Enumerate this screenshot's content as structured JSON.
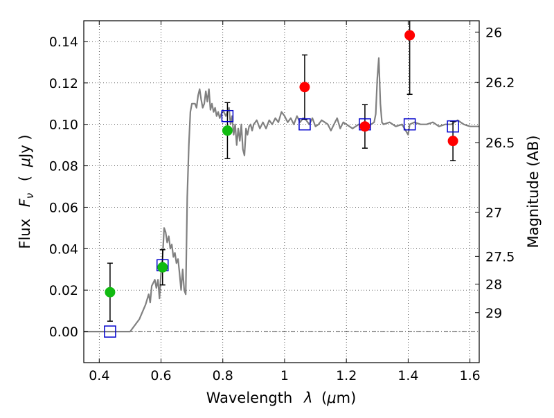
{
  "chart_data": {
    "type": "scatter",
    "xlabel_main": "Wavelength",
    "xlabel_symbol": "λ",
    "xlabel_unit_open": "(",
    "xlabel_unit_mu": "μ",
    "xlabel_unit_rest": "m)",
    "ylabel_main": "Flux",
    "ylabel_symbol": "F",
    "ylabel_sub": "ν",
    "ylabel_unit_open": "(",
    "ylabel_unit_mu": "μ",
    "ylabel_unit_rest": "Jy )",
    "ylabel_right": "Magnitude (AB)",
    "xlim": [
      0.35,
      1.63
    ],
    "ylim": [
      -0.015,
      0.15
    ],
    "x_ticks": [
      0.4,
      0.6,
      0.8,
      1.0,
      1.2,
      1.4,
      1.6
    ],
    "x_tick_labels": [
      "0.4",
      "0.6",
      "0.8",
      "1",
      "1.2",
      "1.4",
      "1.6"
    ],
    "y_ticks": [
      0.0,
      0.02,
      0.04,
      0.06,
      0.08,
      0.1,
      0.12,
      0.14
    ],
    "y_tick_labels": [
      "0.00",
      "0.02",
      "0.04",
      "0.06",
      "0.08",
      "0.10",
      "0.12",
      "0.14"
    ],
    "mag_ticks": [
      {
        "mag": 26,
        "label": "26"
      },
      {
        "mag": 26.2,
        "label": "26.2"
      },
      {
        "mag": 26.5,
        "label": "26.5"
      },
      {
        "mag": 27,
        "label": "27"
      },
      {
        "mag": 27.5,
        "label": "27.5"
      },
      {
        "mag": 28,
        "label": "28"
      },
      {
        "mag": 29,
        "label": "29"
      }
    ],
    "grid": true,
    "colors": {
      "model": "#808080",
      "green_points": "#11bb11",
      "red_points": "#ff0000",
      "model_boxes": "#0000cc",
      "errorbars": "#000000"
    },
    "model_spectrum": [
      [
        0.35,
        0.0
      ],
      [
        0.5,
        0.0
      ],
      [
        0.53,
        0.006
      ],
      [
        0.55,
        0.013
      ],
      [
        0.56,
        0.018
      ],
      [
        0.565,
        0.014
      ],
      [
        0.57,
        0.022
      ],
      [
        0.58,
        0.025
      ],
      [
        0.585,
        0.021
      ],
      [
        0.59,
        0.025
      ],
      [
        0.595,
        0.016
      ],
      [
        0.6,
        0.028
      ],
      [
        0.605,
        0.036
      ],
      [
        0.61,
        0.05
      ],
      [
        0.615,
        0.048
      ],
      [
        0.62,
        0.043
      ],
      [
        0.625,
        0.046
      ],
      [
        0.63,
        0.04
      ],
      [
        0.635,
        0.042
      ],
      [
        0.64,
        0.036
      ],
      [
        0.645,
        0.038
      ],
      [
        0.65,
        0.033
      ],
      [
        0.655,
        0.035
      ],
      [
        0.66,
        0.028
      ],
      [
        0.665,
        0.02
      ],
      [
        0.67,
        0.03
      ],
      [
        0.675,
        0.02
      ],
      [
        0.68,
        0.018
      ],
      [
        0.685,
        0.065
      ],
      [
        0.69,
        0.09
      ],
      [
        0.695,
        0.106
      ],
      [
        0.7,
        0.11
      ],
      [
        0.71,
        0.11
      ],
      [
        0.715,
        0.108
      ],
      [
        0.72,
        0.114
      ],
      [
        0.725,
        0.117
      ],
      [
        0.73,
        0.112
      ],
      [
        0.735,
        0.108
      ],
      [
        0.74,
        0.11
      ],
      [
        0.745,
        0.116
      ],
      [
        0.75,
        0.111
      ],
      [
        0.755,
        0.117
      ],
      [
        0.76,
        0.107
      ],
      [
        0.765,
        0.11
      ],
      [
        0.77,
        0.106
      ],
      [
        0.775,
        0.108
      ],
      [
        0.78,
        0.104
      ],
      [
        0.785,
        0.106
      ],
      [
        0.79,
        0.103
      ],
      [
        0.8,
        0.107
      ],
      [
        0.81,
        0.104
      ],
      [
        0.82,
        0.108
      ],
      [
        0.825,
        0.1
      ],
      [
        0.83,
        0.104
      ],
      [
        0.835,
        0.095
      ],
      [
        0.84,
        0.1
      ],
      [
        0.845,
        0.09
      ],
      [
        0.85,
        0.098
      ],
      [
        0.855,
        0.092
      ],
      [
        0.86,
        0.1
      ],
      [
        0.865,
        0.088
      ],
      [
        0.87,
        0.085
      ],
      [
        0.875,
        0.098
      ],
      [
        0.88,
        0.095
      ],
      [
        0.885,
        0.099
      ],
      [
        0.89,
        0.1
      ],
      [
        0.895,
        0.097
      ],
      [
        0.9,
        0.1
      ],
      [
        0.91,
        0.102
      ],
      [
        0.92,
        0.098
      ],
      [
        0.93,
        0.101
      ],
      [
        0.94,
        0.098
      ],
      [
        0.95,
        0.102
      ],
      [
        0.96,
        0.1
      ],
      [
        0.97,
        0.103
      ],
      [
        0.98,
        0.101
      ],
      [
        0.99,
        0.106
      ],
      [
        1.0,
        0.104
      ],
      [
        1.01,
        0.101
      ],
      [
        1.02,
        0.103
      ],
      [
        1.03,
        0.1
      ],
      [
        1.04,
        0.104
      ],
      [
        1.05,
        0.101
      ],
      [
        1.06,
        0.103
      ],
      [
        1.07,
        0.102
      ],
      [
        1.08,
        0.1
      ],
      [
        1.09,
        0.103
      ],
      [
        1.1,
        0.099
      ],
      [
        1.11,
        0.1
      ],
      [
        1.12,
        0.102
      ],
      [
        1.13,
        0.101
      ],
      [
        1.14,
        0.1
      ],
      [
        1.15,
        0.097
      ],
      [
        1.16,
        0.1
      ],
      [
        1.17,
        0.103
      ],
      [
        1.18,
        0.098
      ],
      [
        1.19,
        0.101
      ],
      [
        1.2,
        0.1
      ],
      [
        1.22,
        0.098
      ],
      [
        1.24,
        0.1
      ],
      [
        1.26,
        0.1
      ],
      [
        1.27,
        0.099
      ],
      [
        1.28,
        0.1
      ],
      [
        1.29,
        0.101
      ],
      [
        1.295,
        0.105
      ],
      [
        1.3,
        0.122
      ],
      [
        1.305,
        0.132
      ],
      [
        1.31,
        0.11
      ],
      [
        1.315,
        0.101
      ],
      [
        1.32,
        0.1
      ],
      [
        1.34,
        0.101
      ],
      [
        1.36,
        0.099
      ],
      [
        1.38,
        0.1
      ],
      [
        1.4,
        0.095
      ],
      [
        1.405,
        0.1
      ],
      [
        1.42,
        0.101
      ],
      [
        1.44,
        0.1
      ],
      [
        1.46,
        0.1
      ],
      [
        1.48,
        0.101
      ],
      [
        1.5,
        0.099
      ],
      [
        1.52,
        0.1
      ],
      [
        1.54,
        0.1
      ],
      [
        1.55,
        0.101
      ],
      [
        1.56,
        0.102
      ],
      [
        1.58,
        0.1
      ],
      [
        1.6,
        0.099
      ],
      [
        1.62,
        0.099
      ],
      [
        1.63,
        0.099
      ]
    ],
    "green_points": [
      {
        "x": 0.435,
        "y": 0.019,
        "yerr": 0.014
      },
      {
        "x": 0.605,
        "y": 0.031,
        "yerr": 0.0085
      },
      {
        "x": 0.815,
        "y": 0.097,
        "yerr": 0.0135
      }
    ],
    "red_points": [
      {
        "x": 1.065,
        "y": 0.118,
        "yerr": 0.0155
      },
      {
        "x": 1.26,
        "y": 0.099,
        "yerr": 0.0105
      },
      {
        "x": 1.405,
        "y": 0.143,
        "yerr": 0.0285
      },
      {
        "x": 1.545,
        "y": 0.092,
        "yerr": 0.0095
      }
    ],
    "model_boxes": [
      {
        "x": 0.435,
        "y": 0.0
      },
      {
        "x": 0.605,
        "y": 0.032
      },
      {
        "x": 0.815,
        "y": 0.104
      },
      {
        "x": 1.065,
        "y": 0.1
      },
      {
        "x": 1.26,
        "y": 0.1
      },
      {
        "x": 1.405,
        "y": 0.1
      },
      {
        "x": 1.545,
        "y": 0.099
      }
    ]
  }
}
